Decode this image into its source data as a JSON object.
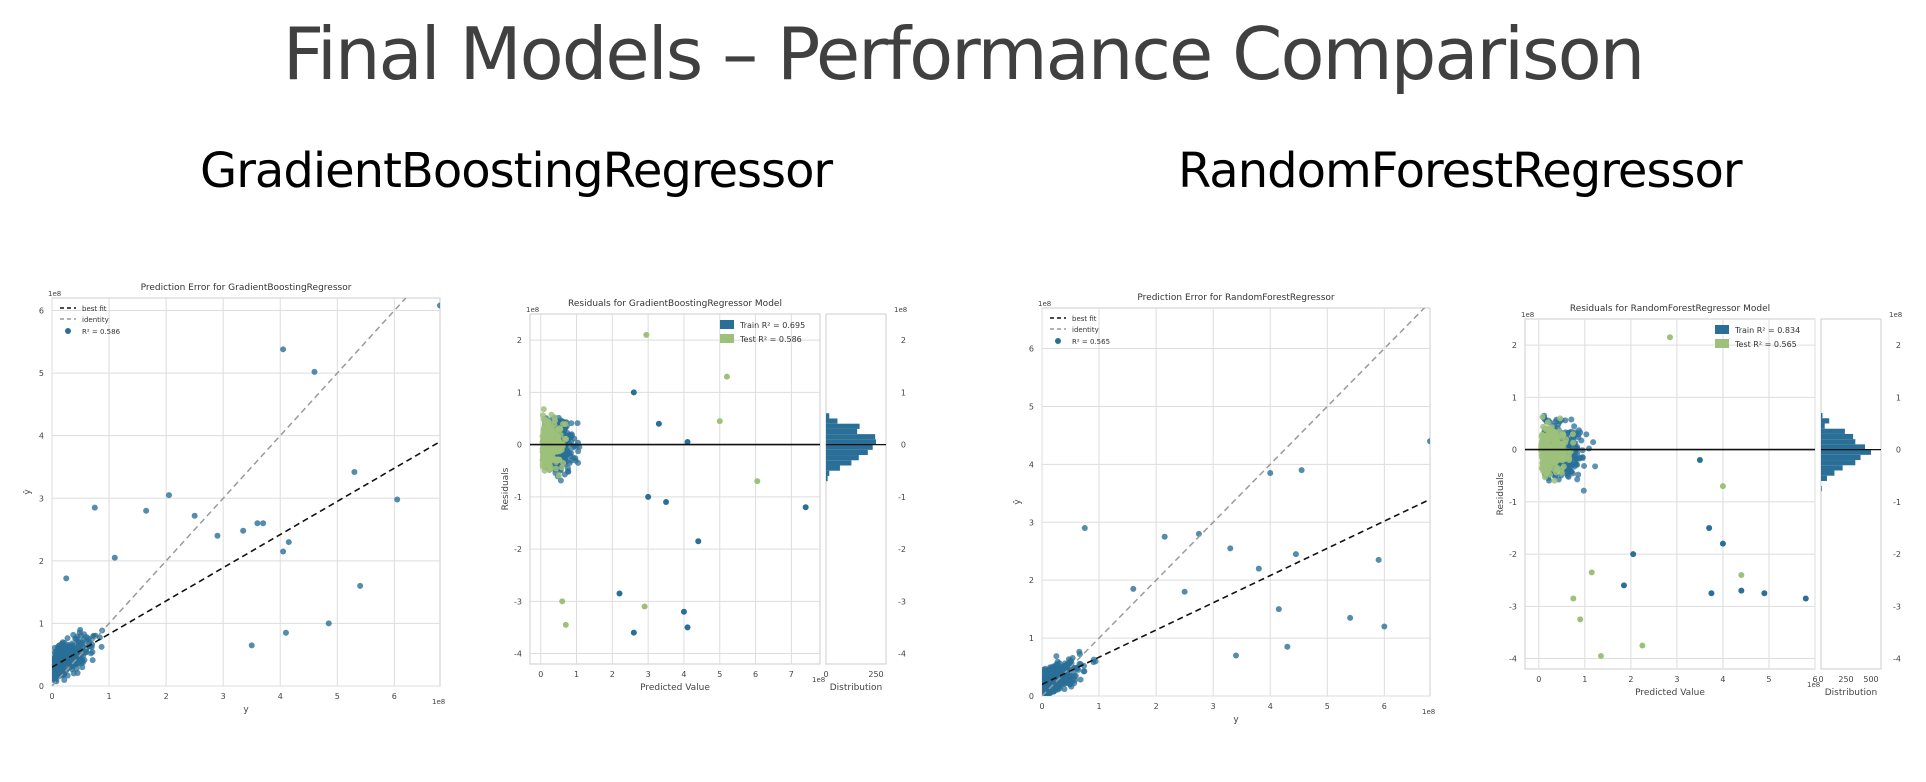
{
  "slide_title": "Final Models – Performance Comparison",
  "sections": [
    {
      "title": "GradientBoostingRegressor"
    },
    {
      "title": "RandomForestRegressor"
    }
  ],
  "colors": {
    "train": "#2a6f97",
    "test": "#9dc17a",
    "best_fit": "#111111",
    "identity": "#9a9a9a",
    "grid": "#dddddd"
  },
  "chart_data": [
    {
      "type": "scatter",
      "title": "Prediction Error for GradientBoostingRegressor",
      "xlabel": "y",
      "ylabel": "ŷ",
      "x_offset_label": "1e8",
      "y_offset_label": "1e8",
      "xlim": [
        0,
        6.8
      ],
      "ylim": [
        0,
        6.2
      ],
      "xticks": [
        0,
        1,
        2,
        3,
        4,
        5,
        6
      ],
      "yticks": [
        0,
        1,
        2,
        3,
        4,
        5,
        6
      ],
      "legend": {
        "position": "top-left",
        "entries": [
          "best fit",
          "identity",
          "R² = 0.586"
        ]
      },
      "r2": 0.586,
      "best_fit": {
        "slope": 0.53,
        "intercept": 0.3
      },
      "outliers": [
        [
          4.05,
          5.38
        ],
        [
          4.6,
          5.02
        ],
        [
          6.8,
          6.08
        ],
        [
          5.3,
          3.42
        ],
        [
          6.05,
          2.98
        ],
        [
          4.15,
          2.3
        ],
        [
          4.05,
          2.15
        ],
        [
          3.7,
          2.6
        ],
        [
          3.35,
          2.48
        ],
        [
          4.85,
          1.0
        ],
        [
          4.1,
          0.85
        ],
        [
          3.5,
          0.65
        ],
        [
          5.4,
          1.6
        ],
        [
          2.05,
          3.05
        ],
        [
          0.75,
          2.85
        ],
        [
          2.5,
          2.72
        ],
        [
          1.65,
          2.8
        ],
        [
          1.1,
          2.05
        ],
        [
          0.25,
          1.72
        ],
        [
          2.9,
          2.4
        ],
        [
          3.6,
          2.6
        ]
      ],
      "cluster": {
        "x_range": [
          0,
          1.5
        ],
        "count": 300
      }
    },
    {
      "type": "scatter",
      "title": "Residuals for GradientBoostingRegressor Model",
      "xlabel": "Predicted Value",
      "ylabel": "Residuals",
      "x_offset_label": "1e8",
      "y_offset_label": "1e8",
      "xlim": [
        -0.3,
        7.8
      ],
      "ylim": [
        -4.2,
        2.5
      ],
      "xticks": [
        0,
        1,
        2,
        3,
        4,
        5,
        6,
        7
      ],
      "yticks": [
        -4,
        -3,
        -2,
        -1,
        0,
        1,
        2
      ],
      "legend": {
        "position": "top-right",
        "entries": [
          "Train R² = 0.695",
          "Test R² = 0.586"
        ]
      },
      "r2_train": 0.695,
      "r2_test": 0.586,
      "dist_label": "Distribution",
      "dist_ticks": [
        0,
        250
      ],
      "test_outliers": [
        [
          2.95,
          2.1
        ],
        [
          5.2,
          1.3
        ],
        [
          6.05,
          -0.7
        ],
        [
          5.0,
          0.45
        ],
        [
          0.7,
          -3.45
        ],
        [
          0.6,
          -3.0
        ],
        [
          2.9,
          -3.1
        ]
      ],
      "train_outliers": [
        [
          4.1,
          0.05
        ],
        [
          2.6,
          1.0
        ],
        [
          3.3,
          0.4
        ],
        [
          7.4,
          -1.2
        ],
        [
          3.5,
          -1.1
        ],
        [
          4.4,
          -1.85
        ],
        [
          4.1,
          -3.5
        ],
        [
          4.0,
          -3.2
        ],
        [
          2.6,
          -3.6
        ],
        [
          2.2,
          -2.85
        ],
        [
          3.0,
          -1.0
        ]
      ]
    },
    {
      "type": "scatter",
      "title": "Prediction Error for RandomForestRegressor",
      "xlabel": "y",
      "ylabel": "ŷ",
      "x_offset_label": "1e8",
      "y_offset_label": "1e8",
      "xlim": [
        0,
        6.8
      ],
      "ylim": [
        0,
        6.7
      ],
      "xticks": [
        0,
        1,
        2,
        3,
        4,
        5,
        6
      ],
      "yticks": [
        0,
        1,
        2,
        3,
        4,
        5,
        6
      ],
      "legend": {
        "position": "top-left",
        "entries": [
          "best fit",
          "identity",
          "R² = 0.565"
        ]
      },
      "r2": 0.565,
      "best_fit": {
        "slope": 0.47,
        "intercept": 0.2
      },
      "outliers": [
        [
          4.0,
          3.85
        ],
        [
          4.55,
          3.9
        ],
        [
          6.8,
          4.4
        ],
        [
          5.9,
          2.35
        ],
        [
          5.4,
          1.35
        ],
        [
          6.0,
          1.2
        ],
        [
          2.75,
          2.8
        ],
        [
          2.15,
          2.75
        ],
        [
          0.75,
          2.9
        ],
        [
          3.3,
          2.55
        ],
        [
          3.8,
          2.2
        ],
        [
          4.45,
          2.45
        ],
        [
          4.15,
          1.5
        ],
        [
          3.4,
          0.7
        ],
        [
          4.3,
          0.85
        ],
        [
          2.5,
          1.8
        ],
        [
          1.6,
          1.85
        ]
      ],
      "cluster": {
        "x_range": [
          0,
          1.5
        ],
        "count": 300
      }
    },
    {
      "type": "scatter",
      "title": "Residuals for RandomForestRegressor Model",
      "xlabel": "Predicted Value",
      "ylabel": "Residuals",
      "x_offset_label": "1e8",
      "y_offset_label": "1e8",
      "xlim": [
        -0.3,
        6.0
      ],
      "ylim": [
        -4.2,
        2.5
      ],
      "xticks": [
        0,
        1,
        2,
        3,
        4,
        5,
        6
      ],
      "yticks": [
        -4,
        -3,
        -2,
        -1,
        0,
        1,
        2
      ],
      "legend": {
        "position": "top-right",
        "entries": [
          "Train R² = 0.834",
          "Test R² = 0.565"
        ]
      },
      "r2_train": 0.834,
      "r2_test": 0.565,
      "dist_label": "Distribution",
      "dist_ticks": [
        0,
        250,
        500
      ],
      "test_outliers": [
        [
          2.85,
          2.15
        ],
        [
          1.35,
          -3.95
        ],
        [
          2.25,
          -3.75
        ],
        [
          0.9,
          -3.25
        ],
        [
          0.75,
          -2.85
        ],
        [
          1.15,
          -2.35
        ],
        [
          4.4,
          -2.4
        ],
        [
          4.0,
          -0.7
        ]
      ],
      "train_outliers": [
        [
          4.9,
          -2.75
        ],
        [
          5.8,
          -2.85
        ],
        [
          3.75,
          -2.75
        ],
        [
          4.4,
          -2.7
        ],
        [
          4.0,
          -1.8
        ],
        [
          3.5,
          -0.2
        ],
        [
          3.7,
          -1.5
        ],
        [
          1.85,
          -2.6
        ],
        [
          2.05,
          -2.0
        ]
      ]
    }
  ]
}
